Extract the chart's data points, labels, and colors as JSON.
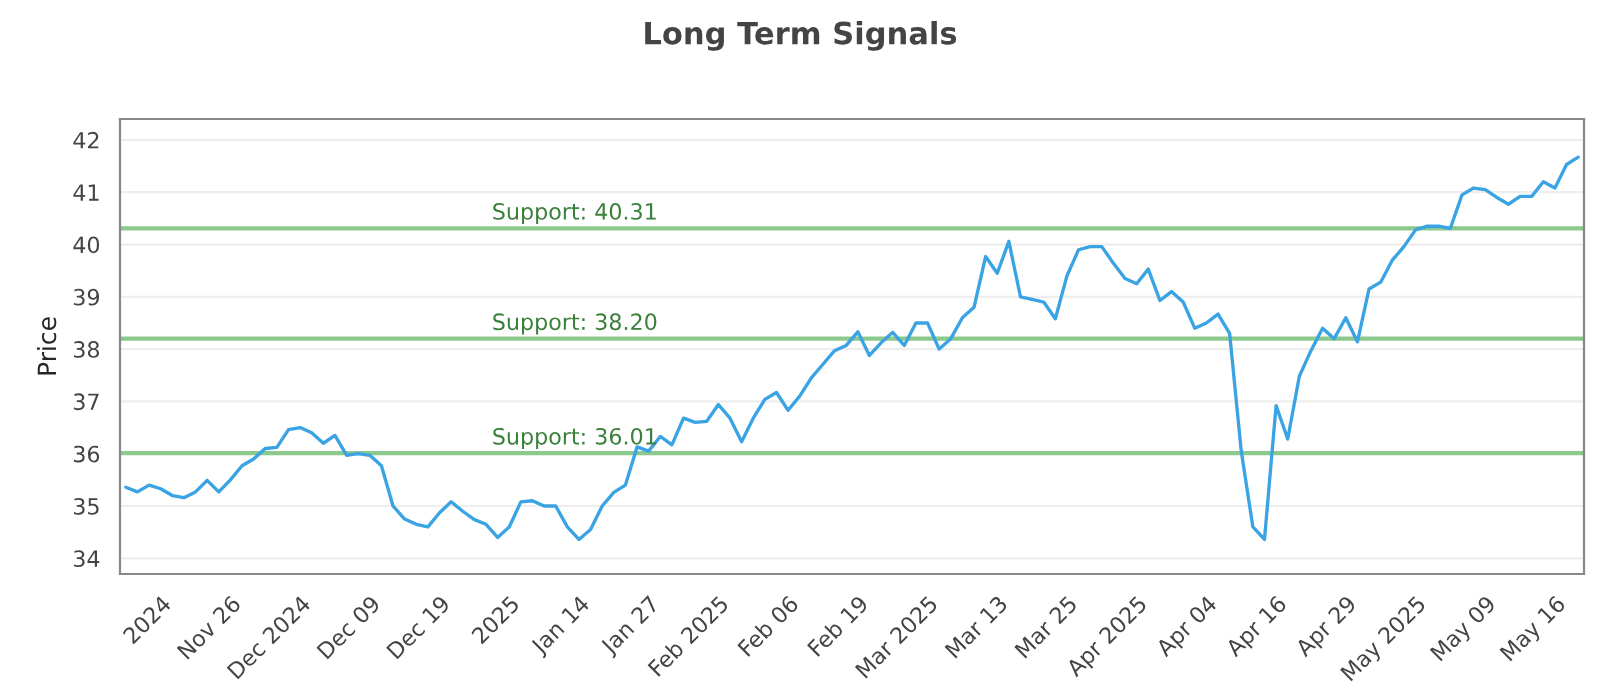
{
  "chart_data": {
    "type": "line",
    "title": "Long Term Signals",
    "ylabel": "Price",
    "categories": [
      null,
      null,
      null,
      "2024",
      null,
      null,
      null,
      null,
      null,
      "Nov 26",
      null,
      null,
      null,
      null,
      null,
      "Dec 2024",
      null,
      null,
      null,
      null,
      null,
      "Dec 09",
      null,
      null,
      null,
      null,
      null,
      "Dec 19",
      null,
      null,
      null,
      null,
      null,
      "2025",
      null,
      null,
      null,
      null,
      null,
      "Jan 14",
      null,
      null,
      null,
      null,
      null,
      "Jan 27",
      null,
      null,
      null,
      null,
      null,
      "Feb 2025",
      null,
      null,
      null,
      null,
      null,
      "Feb 06",
      null,
      null,
      null,
      null,
      null,
      "Feb 19",
      null,
      null,
      null,
      null,
      null,
      "Mar 2025",
      null,
      null,
      null,
      null,
      null,
      "Mar 13",
      null,
      null,
      null,
      null,
      null,
      "Mar 25",
      null,
      null,
      null,
      null,
      null,
      "Apr 2025",
      null,
      null,
      null,
      null,
      null,
      "Apr 04",
      null,
      null,
      null,
      null,
      null,
      "Apr 16",
      null,
      null,
      null,
      null,
      null,
      "Apr 29",
      null,
      null,
      null,
      null,
      null,
      "May 2025",
      null,
      null,
      null,
      null,
      null,
      "May 09",
      null,
      null,
      null,
      null,
      null,
      "May 16",
      null,
      null
    ],
    "series": [
      {
        "color": "#3aa3e3",
        "values": [
          35.36,
          35.27,
          35.4,
          35.33,
          35.2,
          35.16,
          35.27,
          35.49,
          35.27,
          35.5,
          35.77,
          35.9,
          36.1,
          36.12,
          36.46,
          36.5,
          36.4,
          36.2,
          36.35,
          35.97,
          36.0,
          35.97,
          35.77,
          35.0,
          34.75,
          34.65,
          34.6,
          34.87,
          35.08,
          34.9,
          34.74,
          34.65,
          34.4,
          34.6,
          35.08,
          35.1,
          35.0,
          35.0,
          34.6,
          34.36,
          34.55,
          35.0,
          35.26,
          35.4,
          36.13,
          36.05,
          36.33,
          36.17,
          36.68,
          36.6,
          36.62,
          36.94,
          36.68,
          36.23,
          36.68,
          37.04,
          37.17,
          36.83,
          37.1,
          37.45,
          37.71,
          37.97,
          38.07,
          38.33,
          37.88,
          38.12,
          38.32,
          38.07,
          38.5,
          38.5,
          38.0,
          38.2,
          38.6,
          38.8,
          39.77,
          39.45,
          40.06,
          39.0,
          38.95,
          38.9,
          38.58,
          39.4,
          39.9,
          39.96,
          39.96,
          39.64,
          39.35,
          39.25,
          39.53,
          38.93,
          39.1,
          38.9,
          38.4,
          38.5,
          38.67,
          38.3,
          36.05,
          34.6,
          34.36,
          36.92,
          36.28,
          37.48,
          37.97,
          38.4,
          38.2,
          38.6,
          38.14,
          39.15,
          39.28,
          39.7,
          39.96,
          40.28,
          40.35,
          40.35,
          40.31,
          40.95,
          41.08,
          41.05,
          40.9,
          40.77,
          40.92,
          40.92,
          41.2,
          41.08,
          41.53,
          41.67
        ]
      }
    ],
    "ylim": [
      33.7,
      42.4
    ],
    "yticks": [
      34,
      35,
      36,
      37,
      38,
      39,
      40,
      41,
      42
    ],
    "grid": "y",
    "ref_lines": [
      {
        "axis": "y",
        "value": 40.31,
        "label": "Support: 40.31",
        "color": "#8cc98c"
      },
      {
        "axis": "y",
        "value": 38.2,
        "label": "Support: 38.20",
        "color": "#8cc98c"
      },
      {
        "axis": "y",
        "value": 36.01,
        "label": "Support: 36.01",
        "color": "#8cc98c"
      }
    ]
  }
}
